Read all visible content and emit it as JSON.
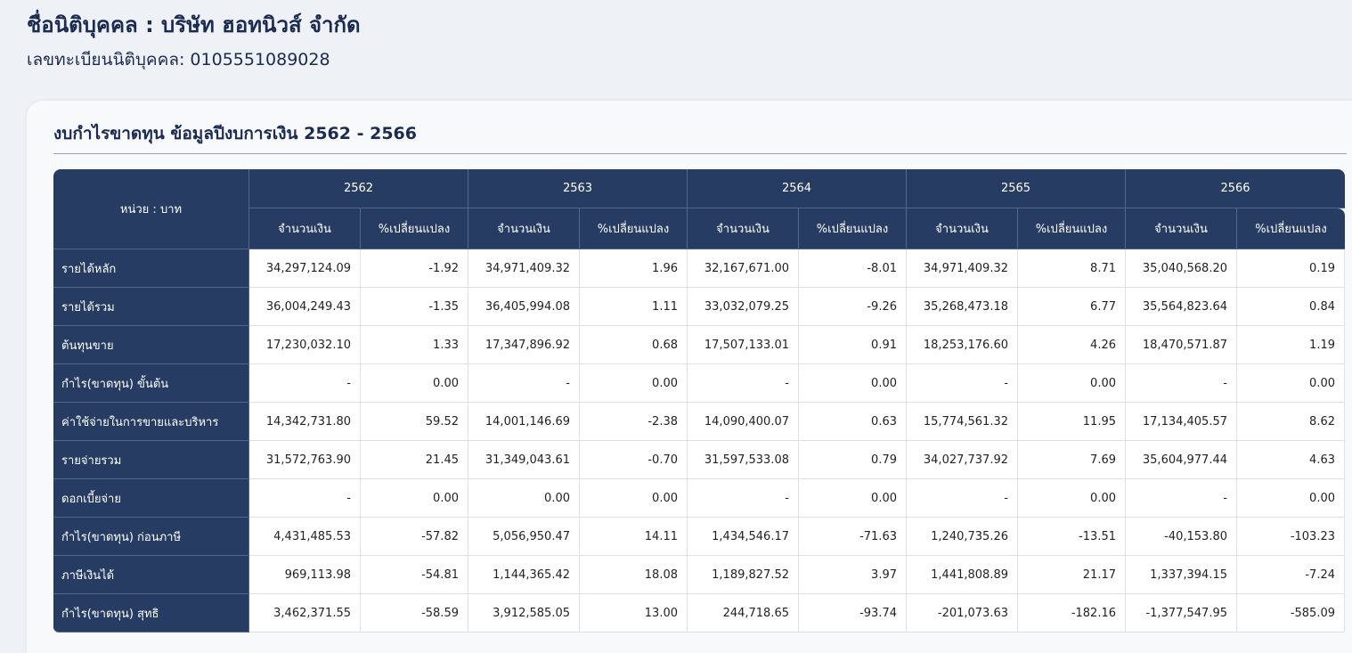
{
  "header": {
    "company_line": "ชื่อนิติบุคคล : บริษัท ฮอทนิวส์ จำกัด",
    "registration_line": "เลขทะเบียนนิติบุคคล: 0105551089028"
  },
  "card": {
    "title": "งบกำไรขาดทุน ข้อมูลปีงบการเงิน 2562 - 2566"
  },
  "table": {
    "unit_label": "หน่วย : บาท",
    "amount_label": "จำนวนเงิน",
    "change_label": "%เปลี่ยนแปลง",
    "years": [
      "2562",
      "2563",
      "2564",
      "2565",
      "2566"
    ],
    "rows": [
      {
        "label": "รายได้หลัก",
        "cells": [
          "34,297,124.09",
          "-1.92",
          "34,971,409.32",
          "1.96",
          "32,167,671.00",
          "-8.01",
          "34,971,409.32",
          "8.71",
          "35,040,568.20",
          "0.19"
        ]
      },
      {
        "label": "รายได้รวม",
        "cells": [
          "36,004,249.43",
          "-1.35",
          "36,405,994.08",
          "1.11",
          "33,032,079.25",
          "-9.26",
          "35,268,473.18",
          "6.77",
          "35,564,823.64",
          "0.84"
        ]
      },
      {
        "label": "ต้นทุนขาย",
        "cells": [
          "17,230,032.10",
          "1.33",
          "17,347,896.92",
          "0.68",
          "17,507,133.01",
          "0.91",
          "18,253,176.60",
          "4.26",
          "18,470,571.87",
          "1.19"
        ]
      },
      {
        "label": "กำไร(ขาดทุน) ขั้นต้น",
        "cells": [
          "-",
          "0.00",
          "-",
          "0.00",
          "-",
          "0.00",
          "-",
          "0.00",
          "-",
          "0.00"
        ]
      },
      {
        "label": "ค่าใช้จ่ายในการขายและบริหาร",
        "cells": [
          "14,342,731.80",
          "59.52",
          "14,001,146.69",
          "-2.38",
          "14,090,400.07",
          "0.63",
          "15,774,561.32",
          "11.95",
          "17,134,405.57",
          "8.62"
        ]
      },
      {
        "label": "รายจ่ายรวม",
        "cells": [
          "31,572,763.90",
          "21.45",
          "31,349,043.61",
          "-0.70",
          "31,597,533.08",
          "0.79",
          "34,027,737.92",
          "7.69",
          "35,604,977.44",
          "4.63"
        ]
      },
      {
        "label": "ดอกเบี้ยจ่าย",
        "cells": [
          "-",
          "0.00",
          "0.00",
          "0.00",
          "-",
          "0.00",
          "-",
          "0.00",
          "-",
          "0.00"
        ]
      },
      {
        "label": "กำไร(ขาดทุน) ก่อนภาษี",
        "cells": [
          "4,431,485.53",
          "-57.82",
          "5,056,950.47",
          "14.11",
          "1,434,546.17",
          "-71.63",
          "1,240,735.26",
          "-13.51",
          "-40,153.80",
          "-103.23"
        ]
      },
      {
        "label": "ภาษีเงินได้",
        "cells": [
          "969,113.98",
          "-54.81",
          "1,144,365.42",
          "18.08",
          "1,189,827.52",
          "3.97",
          "1,441,808.89",
          "21.17",
          "1,337,394.15",
          "-7.24"
        ]
      },
      {
        "label": "กำไร(ขาดทุน) สุทธิ",
        "cells": [
          "3,462,371.55",
          "-58.59",
          "3,912,585.05",
          "13.00",
          "244,718.65",
          "-93.74",
          "-201,073.63",
          "-182.16",
          "-1,377,547.95",
          "-585.09"
        ]
      }
    ]
  }
}
